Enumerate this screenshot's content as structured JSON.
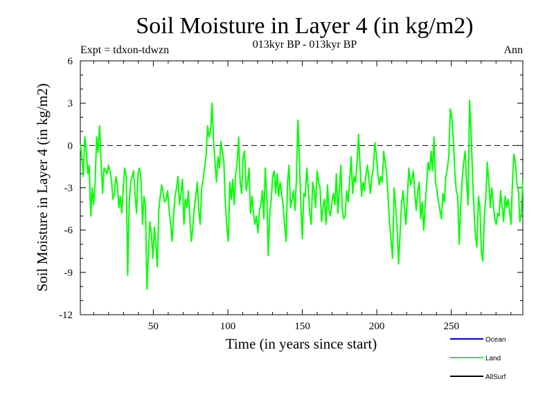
{
  "chart_data": {
    "type": "line",
    "title": "Soil Moisture in Layer 4 (in kg/m2)",
    "subtitle": "013kyr BP - 013kyr BP",
    "expt_label": "Expt = tdxon-tdwzn",
    "period_label": "Ann",
    "xlabel": "Time (in years since start)",
    "ylabel": "Soil Moisture in Layer 4 (in kg/m2)",
    "xlim": [
      1,
      298
    ],
    "ylim": [
      -12,
      6
    ],
    "x_ticks": [
      50,
      100,
      150,
      200,
      250
    ],
    "y_ticks": [
      6,
      3,
      0,
      -3,
      -6,
      -9,
      -12
    ],
    "zero_line": "dashed",
    "legend_position": "bottom-right",
    "series": [
      {
        "name": "Ocean",
        "color": "#0000cc",
        "values": []
      },
      {
        "name": "Land",
        "color": "#00ff00",
        "values": [
          0.1,
          -0.8,
          -2.2,
          0.6,
          -0.2,
          -2.0,
          -1.4,
          -5.0,
          -3.0,
          -4.2,
          -2.6,
          0.6,
          -0.5,
          1.4,
          -1.0,
          -3.4,
          -1.6,
          -1.8,
          -2.0,
          -1.4,
          -1.8,
          -2.4,
          -3.8,
          -3.4,
          -2.2,
          -2.8,
          -4.4,
          -3.6,
          -4.8,
          -3.0,
          -1.6,
          -2.2,
          -9.2,
          -4.2,
          -2.6,
          -2.2,
          -1.8,
          -3.6,
          -4.8,
          -2.0,
          -1.6,
          -2.4,
          -5.6,
          -3.6,
          -4.2,
          -10.2,
          -7.6,
          -5.4,
          -6.2,
          -8.0,
          -5.8,
          -7.0,
          -8.6,
          -4.6,
          -3.6,
          -2.8,
          -3.4,
          -4.0,
          -3.8,
          -3.2,
          -4.6,
          -5.6,
          -6.8,
          -5.0,
          -3.6,
          -3.0,
          -2.2,
          -4.2,
          -3.4,
          -2.4,
          -5.6,
          -3.8,
          -4.4,
          -3.2,
          -5.2,
          -6.8,
          -5.8,
          -4.4,
          -3.6,
          -2.6,
          -4.6,
          -5.6,
          -3.0,
          -2.4,
          -1.6,
          -0.6,
          1.4,
          0.6,
          1.0,
          3.0,
          0.4,
          -1.2,
          -2.6,
          -0.8,
          -1.6,
          0.3,
          -0.5,
          -1.2,
          -4.0,
          -5.8,
          -6.8,
          -2.6,
          -3.8,
          -2.4,
          -4.2,
          -2.0,
          -1.2,
          0.6,
          -2.6,
          -3.4,
          -0.8,
          -0.4,
          -3.2,
          -2.6,
          -1.6,
          -4.8,
          -3.6,
          -4.8,
          -5.6,
          -5.0,
          -6.2,
          -4.6,
          -4.2,
          -3.2,
          -5.2,
          -1.6,
          -3.6,
          -7.8,
          -4.8,
          -3.8,
          -2.2,
          -1.8,
          -3.4,
          -2.0,
          -3.6,
          -2.6,
          -3.4,
          -4.2,
          -5.6,
          -6.8,
          -2.6,
          -1.4,
          -4.4,
          -3.8,
          -3.2,
          -4.6,
          -2.4,
          1.8,
          -0.8,
          -4.2,
          -6.6,
          -3.4,
          -3.6,
          -1.6,
          -3.0,
          -4.8,
          -5.6,
          -2.6,
          -3.2,
          -4.4,
          -1.8,
          -2.6,
          -3.0,
          -5.4,
          -4.4,
          -3.8,
          -5.6,
          -2.8,
          -4.6,
          -5.0,
          -4.0,
          -3.4,
          -4.2,
          -2.0,
          -4.8,
          -3.2,
          -1.4,
          -4.6,
          -5.2,
          -5.0,
          -3.2,
          -4.0,
          -2.4,
          -0.8,
          -3.4,
          -2.2,
          -2.6,
          -1.2,
          0.8,
          -1.4,
          -3.6,
          -2.6,
          -3.2,
          -2.0,
          -1.4,
          -2.4,
          -3.4,
          -2.2,
          -1.6,
          0.2,
          -0.6,
          -2.0,
          -2.8,
          -2.2,
          -2.6,
          -0.4,
          -1.2,
          -2.0,
          -3.8,
          -5.6,
          -6.8,
          -8.0,
          -3.0,
          -4.2,
          -5.8,
          -8.4,
          -6.4,
          -4.2,
          -3.2,
          -4.4,
          -5.6,
          -3.6,
          -1.6,
          -2.8,
          -2.4,
          -1.8,
          -3.4,
          -4.6,
          -3.2,
          -2.6,
          -5.2,
          -4.0,
          -6.0,
          -4.4,
          -2.6,
          -1.2,
          -1.8,
          -0.4,
          -1.8,
          0.6,
          -2.6,
          -3.2,
          -4.0,
          -4.6,
          -5.2,
          -3.4,
          -4.0,
          -2.2,
          -1.6,
          -0.8,
          2.6,
          2.0,
          0.4,
          -1.8,
          -3.2,
          -3.6,
          -7.0,
          -4.4,
          -2.4,
          -1.2,
          -0.4,
          -2.6,
          -4.2,
          3.2,
          1.0,
          -2.0,
          -4.6,
          -6.4,
          -7.2,
          -3.6,
          -4.4,
          -7.6,
          -8.2,
          -5.0,
          -3.6,
          -1.2,
          -2.6,
          -4.4,
          -3.0,
          -4.2,
          -5.2,
          -5.6,
          -4.8,
          -5.0,
          -3.2,
          -4.4,
          -5.4,
          -3.6,
          -4.4,
          -3.8,
          -4.6,
          -5.6,
          -2.6,
          -0.6,
          -1.2,
          -2.8,
          -3.2,
          -5.4,
          -4.8,
          -2.4
        ]
      },
      {
        "name": "AllSurf",
        "color": "#000000",
        "values": []
      }
    ]
  }
}
